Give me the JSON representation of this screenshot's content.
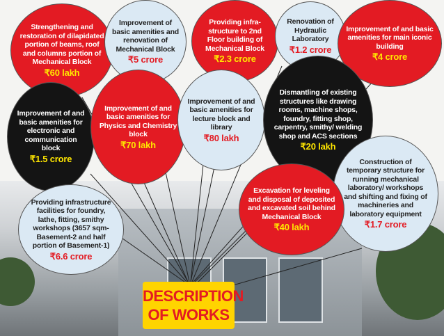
{
  "title": {
    "line1": "DESCRIPTION",
    "line2": "OF WORKS"
  },
  "colors": {
    "red": "#e31b23",
    "light_blue": "#dbe9f4",
    "black": "#141414",
    "amount_yellow": "#ffe600",
    "title_bg": "#ffd400"
  },
  "works": [
    {
      "text": "Strengthening and restoration of dilapidated portion of beams, roof and columns portion of Mechanical Block",
      "amount": "₹60 lakh"
    },
    {
      "text": "Improvement of basic amenities and renovation of Mechanical Block",
      "amount": "₹5 crore"
    },
    {
      "text": "Providing infra-structure to 2nd Floor building of Mechanical Block",
      "amount": "₹2.3 crore"
    },
    {
      "text": "Renovation of Hydraulic Laboratory",
      "amount": "₹1.2 crore"
    },
    {
      "text": "Improvement of and basic amenities for main iconic building",
      "amount": "₹4 crore"
    },
    {
      "text": "Improvement of and basic amenities for electronic and communication block",
      "amount": "₹1.5 crore"
    },
    {
      "text": "Improvement of and basic amenities for Physics and Chemistry block",
      "amount": "₹70 lakh"
    },
    {
      "text": "Improvement of and basic amenities for lecture block and library",
      "amount": "₹80 lakh"
    },
    {
      "text": "Dismantling of existing structures like drawing rooms, machine shops, foundry, fitting shop, carpentry, smithy/ welding shop and ACS sections",
      "amount": "₹20 lakh"
    },
    {
      "text": "Construction of temporary structure for running mechanical laboratory/ workshops and shifting and fixing of machineries and laboratory equipment",
      "amount": "₹1.7 crore"
    },
    {
      "text": "Excavation for leveling and disposal of deposited and excavated soil behind Mechanical Block",
      "amount": "₹40 lakh"
    },
    {
      "text": "Providing infrastructure facilities for foundry, lathe, fitting, smithy workshops (3657 sqm- Basement-2 and half portion of Basement-1)",
      "amount": "₹6.6 crore"
    }
  ]
}
